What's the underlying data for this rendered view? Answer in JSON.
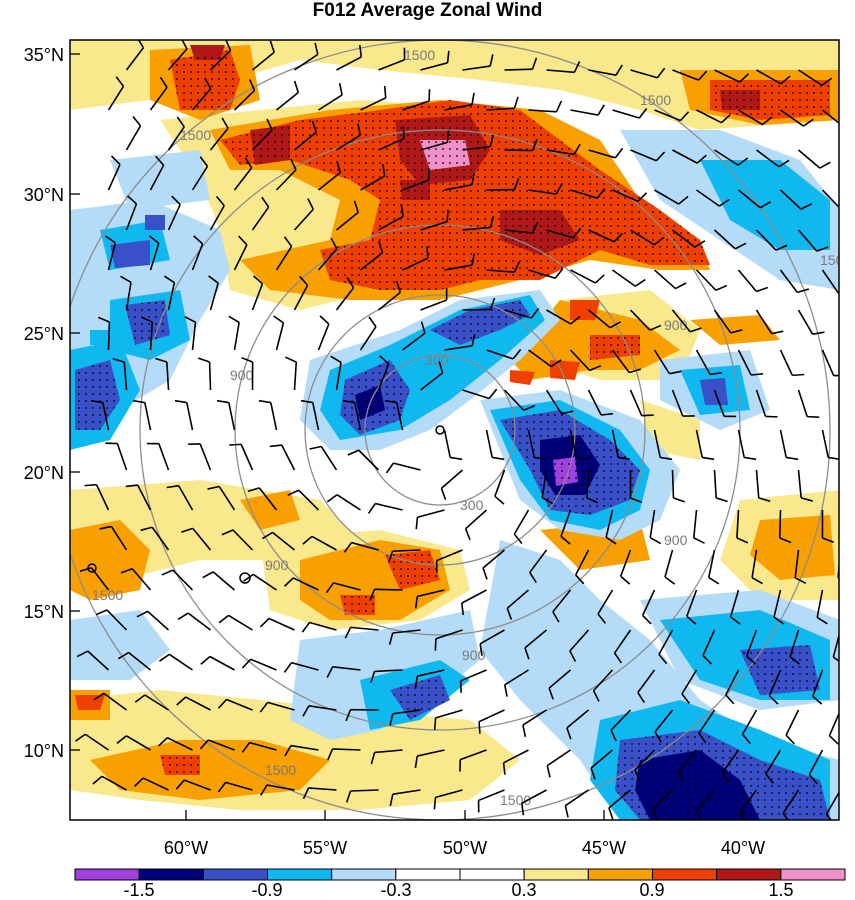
{
  "title": "F012 Average Zonal Wind",
  "lat_labels": [
    "35°N",
    "30°N",
    "25°N",
    "20°N",
    "15°N",
    "10°N"
  ],
  "lon_labels": [
    "60°W",
    "55°W",
    "50°W",
    "45°W",
    "40°W"
  ],
  "range_rings": {
    "labels": [
      "300",
      "900",
      "1500"
    ],
    "color": "#8c8c8c"
  },
  "colorbar": {
    "tick_labels": [
      "-1.5",
      "-0.9",
      "-0.3",
      "0.3",
      "0.9",
      "1.5"
    ],
    "colors": [
      "#a040e0",
      "#00007a",
      "#3a50c8",
      "#10b8f0",
      "#b4dcf8",
      "#ffffff",
      "#ffffff",
      "#fae88c",
      "#f8a000",
      "#f04000",
      "#b01818",
      "#f090c8"
    ]
  },
  "stipple_note": "dotted hatching over significant regions"
}
